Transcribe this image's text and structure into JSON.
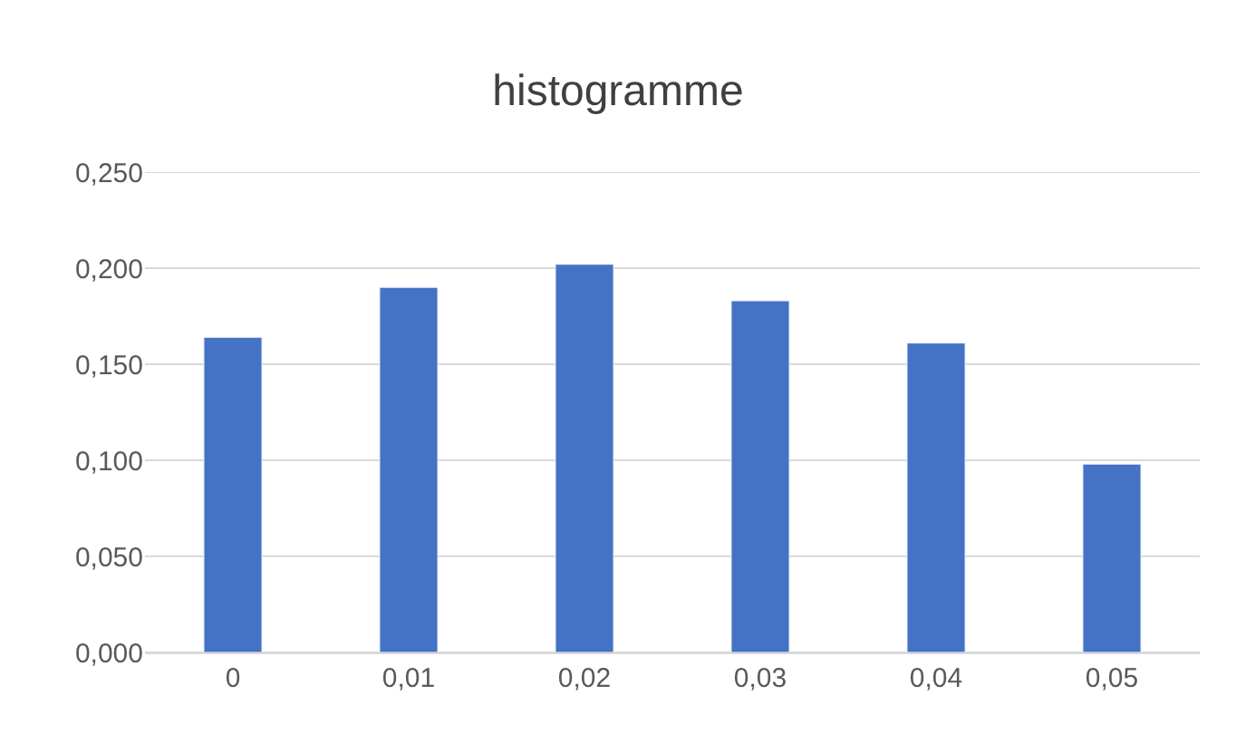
{
  "chart_data": {
    "type": "bar",
    "title": "histogramme",
    "categories": [
      "0",
      "0,01",
      "0,02",
      "0,03",
      "0,04",
      "0,05"
    ],
    "series": [
      {
        "color": "#4472c4",
        "values": [
          0.164,
          0.19,
          0.202,
          0.183,
          0.161,
          0.098
        ]
      }
    ],
    "ylim": [
      0,
      0.25
    ],
    "yticks": [
      {
        "value": 0,
        "label": "0,000"
      },
      {
        "value": 0.05,
        "label": "0,050"
      },
      {
        "value": 0.1,
        "label": "0,100"
      },
      {
        "value": 0.15,
        "label": "0,150"
      },
      {
        "value": 0.2,
        "label": "0,200"
      },
      {
        "value": 0.25,
        "label": "0,250"
      }
    ],
    "grid": "y"
  }
}
